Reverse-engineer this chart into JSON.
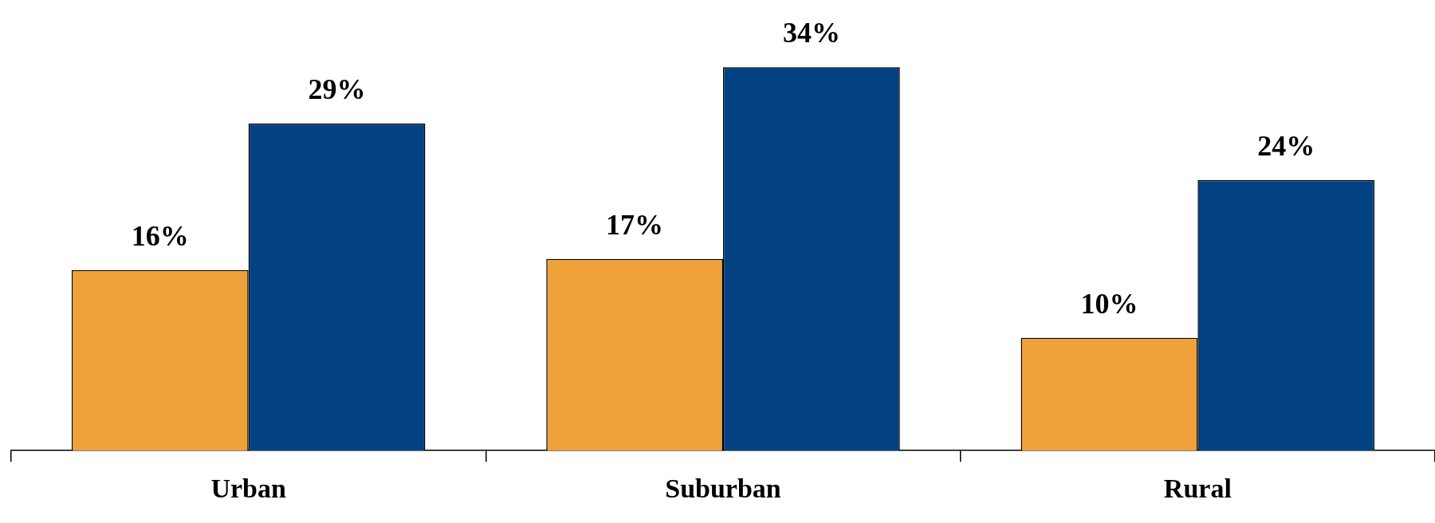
{
  "chart_data": {
    "type": "bar",
    "categories": [
      "Urban",
      "Suburban",
      "Rural"
    ],
    "series": [
      {
        "color": "#f0a13a",
        "values": [
          16,
          17,
          10
        ],
        "value_labels": [
          "16%",
          "17%",
          "10%"
        ]
      },
      {
        "color": "#024283",
        "values": [
          29,
          34,
          24
        ],
        "value_labels": [
          "29%",
          "34%",
          "24%"
        ]
      }
    ],
    "grid": false,
    "legend": false
  }
}
